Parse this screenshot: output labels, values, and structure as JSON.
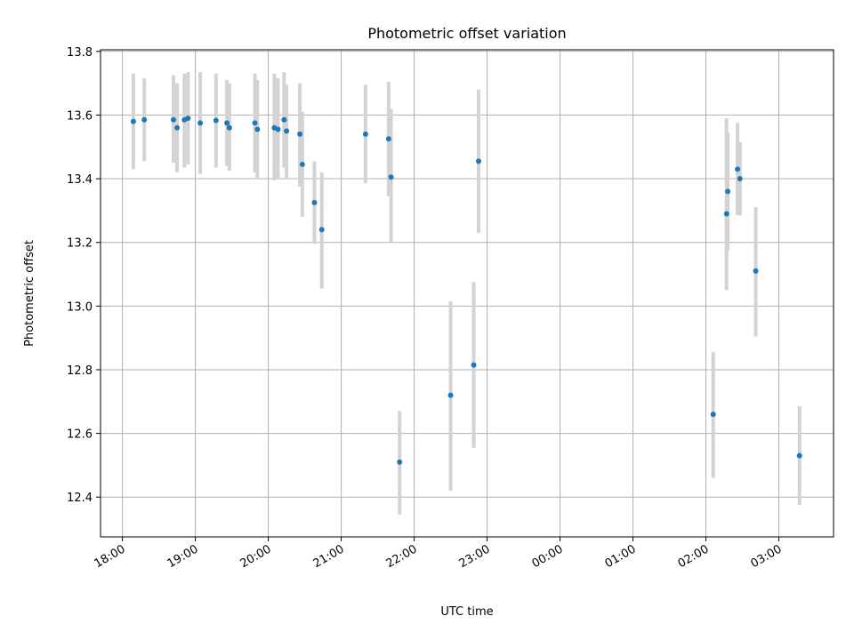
{
  "chart_data": {
    "type": "scatter",
    "title": "Photometric offset variation",
    "xlabel": "UTC time",
    "ylabel": "Photometric offset",
    "x_tick_labels": [
      "18:00",
      "19:00",
      "20:00",
      "21:00",
      "22:00",
      "23:00",
      "00:00",
      "01:00",
      "02:00",
      "03:00"
    ],
    "x_tick_hours": [
      0,
      1,
      2,
      3,
      4,
      5,
      6,
      7,
      8,
      9
    ],
    "xlim_hours": [
      -0.3,
      9.75
    ],
    "y_ticks": [
      12.4,
      12.6,
      12.8,
      13.0,
      13.2,
      13.4,
      13.6,
      13.8
    ],
    "y_tick_labels": [
      "12.4",
      "12.6",
      "12.8",
      "13.0",
      "13.2",
      "13.4",
      "13.6",
      "13.8"
    ],
    "ylim": [
      12.275,
      13.805
    ],
    "grid": true,
    "point_color": "#1f77b4",
    "errorbar_color": "#d3d3d3",
    "points": [
      {
        "x": "18:09",
        "y": 13.58,
        "lo": 13.43,
        "hi": 13.73
      },
      {
        "x": "18:18",
        "y": 13.585,
        "lo": 13.455,
        "hi": 13.715
      },
      {
        "x": "18:42",
        "y": 13.585,
        "lo": 13.45,
        "hi": 13.725
      },
      {
        "x": "18:45",
        "y": 13.56,
        "lo": 13.42,
        "hi": 13.7
      },
      {
        "x": "18:51",
        "y": 13.585,
        "lo": 13.435,
        "hi": 13.73
      },
      {
        "x": "18:54",
        "y": 13.59,
        "lo": 13.445,
        "hi": 13.735
      },
      {
        "x": "19:04",
        "y": 13.575,
        "lo": 13.415,
        "hi": 13.735
      },
      {
        "x": "19:17",
        "y": 13.583,
        "lo": 13.435,
        "hi": 13.73
      },
      {
        "x": "19:26",
        "y": 13.575,
        "lo": 13.44,
        "hi": 13.71
      },
      {
        "x": "19:28",
        "y": 13.56,
        "lo": 13.425,
        "hi": 13.7
      },
      {
        "x": "19:49",
        "y": 13.575,
        "lo": 13.42,
        "hi": 13.73
      },
      {
        "x": "19:51",
        "y": 13.555,
        "lo": 13.4,
        "hi": 13.71
      },
      {
        "x": "20:05",
        "y": 13.56,
        "lo": 13.395,
        "hi": 13.73
      },
      {
        "x": "20:08",
        "y": 13.555,
        "lo": 13.4,
        "hi": 13.715
      },
      {
        "x": "20:13",
        "y": 13.585,
        "lo": 13.435,
        "hi": 13.735
      },
      {
        "x": "20:15",
        "y": 13.55,
        "lo": 13.4,
        "hi": 13.695
      },
      {
        "x": "20:26",
        "y": 13.54,
        "lo": 13.375,
        "hi": 13.7
      },
      {
        "x": "20:28",
        "y": 13.445,
        "lo": 13.28,
        "hi": 13.61
      },
      {
        "x": "20:38",
        "y": 13.325,
        "lo": 13.195,
        "hi": 13.455
      },
      {
        "x": "20:44",
        "y": 13.24,
        "lo": 13.055,
        "hi": 13.42
      },
      {
        "x": "21:20",
        "y": 13.54,
        "lo": 13.385,
        "hi": 13.695
      },
      {
        "x": "21:39",
        "y": 13.525,
        "lo": 13.345,
        "hi": 13.705
      },
      {
        "x": "21:41",
        "y": 13.405,
        "lo": 13.2,
        "hi": 13.62
      },
      {
        "x": "21:48",
        "y": 12.51,
        "lo": 12.345,
        "hi": 12.67
      },
      {
        "x": "22:30",
        "y": 12.72,
        "lo": 12.42,
        "hi": 13.015
      },
      {
        "x": "22:49",
        "y": 12.815,
        "lo": 12.555,
        "hi": 13.075
      },
      {
        "x": "22:53",
        "y": 13.455,
        "lo": 13.23,
        "hi": 13.68
      },
      {
        "x": "02:06",
        "y": 12.66,
        "lo": 12.46,
        "hi": 12.855
      },
      {
        "x": "02:17",
        "y": 13.29,
        "lo": 13.05,
        "hi": 13.59
      },
      {
        "x": "02:18",
        "y": 13.36,
        "lo": 13.175,
        "hi": 13.545
      },
      {
        "x": "02:26",
        "y": 13.43,
        "lo": 13.285,
        "hi": 13.575
      },
      {
        "x": "02:28",
        "y": 13.4,
        "lo": 13.285,
        "hi": 13.515
      },
      {
        "x": "02:41",
        "y": 13.11,
        "lo": 12.905,
        "hi": 13.31
      },
      {
        "x": "03:17",
        "y": 12.53,
        "lo": 12.375,
        "hi": 12.685
      }
    ]
  }
}
